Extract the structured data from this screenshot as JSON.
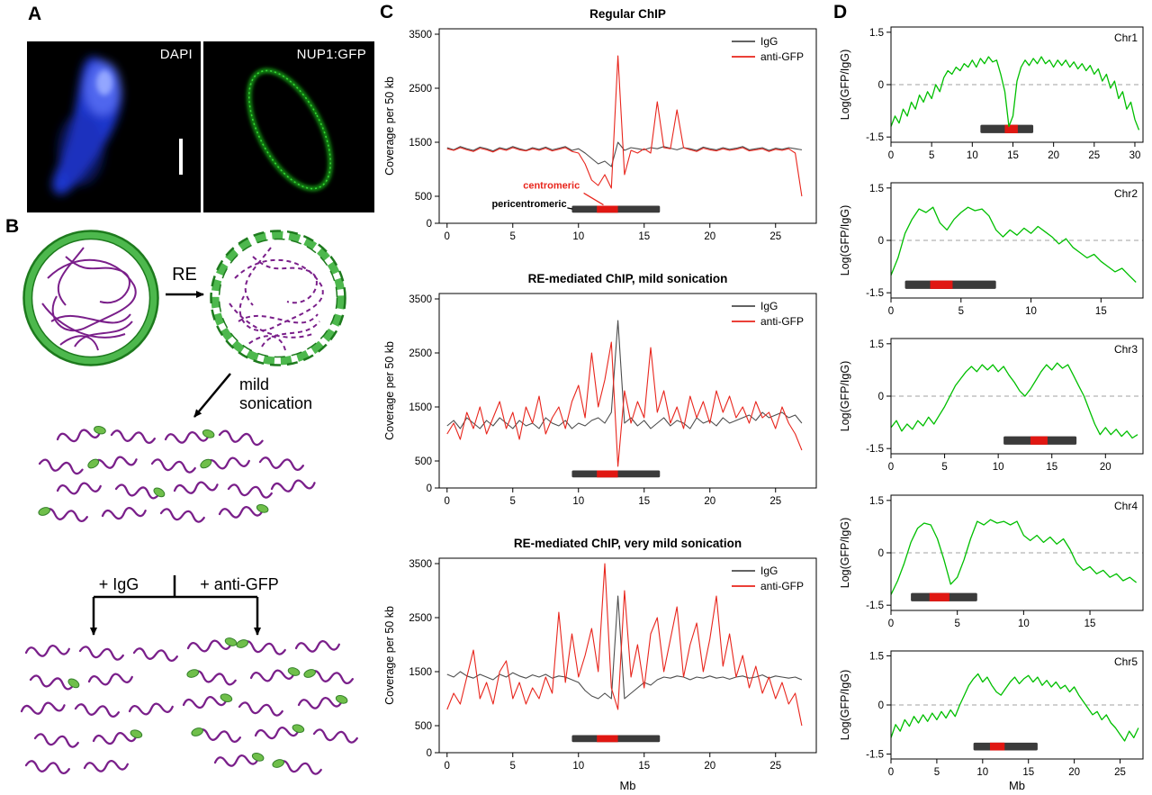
{
  "panel_labels": {
    "a": "A",
    "b": "B",
    "c": "C",
    "d": "D"
  },
  "panel_a": {
    "left_label": "DAPI",
    "right_label": "NUP1:GFP"
  },
  "panel_b": {
    "re": "RE",
    "mild_line1": "mild",
    "mild_line2": "sonication",
    "igg": "+ IgG",
    "anti_gfp": "+ anti-GFP"
  },
  "colors": {
    "igg": "#4d4d4d",
    "gfp": "#e8251c",
    "green": "#00bf00",
    "bar_dark": "#3b3b3b",
    "bar_red": "#e01712",
    "dash": "#b5b5b5",
    "purple": "#7a1f8a",
    "blob_green": "#6fbf4a",
    "blob_edge": "#35802b",
    "ring_green": "#4db84d",
    "ring_edge": "#1d7a1d",
    "dapi_blue": "#2038d8",
    "nup_green": "#16a016"
  },
  "chart_data": [
    {
      "id": "c1",
      "type": "line",
      "title": "Regular ChIP",
      "ylabel": "Coverage per 50 kb",
      "xlabel": "",
      "xlim": [
        -0.6,
        28.1
      ],
      "ylim": [
        0,
        3600
      ],
      "xticks": [
        0,
        5,
        10,
        15,
        20,
        25
      ],
      "yticks": [
        0,
        500,
        1500,
        2500,
        3500
      ],
      "x_start": 0,
      "x_step": 0.5,
      "legend": true,
      "zero_line": false,
      "series": [
        {
          "name": "IgG",
          "color": "igg",
          "values": [
            1400,
            1360,
            1420,
            1380,
            1350,
            1410,
            1380,
            1340,
            1400,
            1370,
            1420,
            1380,
            1350,
            1400,
            1370,
            1410,
            1360,
            1390,
            1420,
            1350,
            1380,
            1300,
            1200,
            1100,
            1150,
            1050,
            1500,
            1350,
            1400,
            1380,
            1360,
            1400,
            1380,
            1420,
            1390,
            1360,
            1400,
            1380,
            1350,
            1410,
            1380,
            1360,
            1400,
            1370,
            1390,
            1420,
            1360,
            1380,
            1400,
            1350,
            1390,
            1370,
            1400,
            1380,
            1360
          ]
        },
        {
          "name": "anti-GFP",
          "color": "gfp",
          "values": [
            1380,
            1350,
            1400,
            1360,
            1330,
            1390,
            1360,
            1320,
            1380,
            1350,
            1400,
            1360,
            1340,
            1380,
            1350,
            1390,
            1340,
            1370,
            1400,
            1330,
            1300,
            1100,
            800,
            700,
            900,
            650,
            3100,
            900,
            1350,
            1300,
            1380,
            1300,
            2250,
            1400,
            1380,
            2100,
            1400,
            1360,
            1330,
            1390,
            1360,
            1340,
            1380,
            1350,
            1370,
            1400,
            1340,
            1360,
            1380,
            1330,
            1370,
            1350,
            1380,
            1300,
            500
          ]
        }
      ],
      "centromere_bar": {
        "start": 9.5,
        "end": 16.2,
        "red_start": 11.4,
        "red_end": 13.0,
        "y": 260,
        "h": 130
      },
      "annotations": [
        {
          "text": "centromeric",
          "color": "gfp",
          "x": 10.1,
          "y": 640,
          "anchor": "end",
          "line": [
            [
              10.4,
              560
            ],
            [
              11.9,
              340
            ]
          ]
        },
        {
          "text": "pericentromeric",
          "color": "#000000",
          "x": 9.1,
          "y": 300,
          "anchor": "end",
          "line": [
            [
              9.15,
              285
            ],
            [
              9.55,
              265
            ]
          ]
        }
      ]
    },
    {
      "id": "c2",
      "type": "line",
      "title": "RE-mediated ChIP, mild sonication",
      "ylabel": "Coverage per 50 kb",
      "xlabel": "",
      "xlim": [
        -0.6,
        28.1
      ],
      "ylim": [
        0,
        3600
      ],
      "xticks": [
        0,
        5,
        10,
        15,
        20,
        25
      ],
      "yticks": [
        0,
        500,
        1500,
        2500,
        3500
      ],
      "x_start": 0,
      "x_step": 0.5,
      "legend": true,
      "zero_line": false,
      "series": [
        {
          "name": "IgG",
          "color": "igg",
          "values": [
            1150,
            1250,
            1100,
            1300,
            1200,
            1100,
            1250,
            1150,
            1300,
            1200,
            1100,
            1250,
            1150,
            1200,
            1100,
            1300,
            1200,
            1150,
            1250,
            1100,
            1200,
            1150,
            1250,
            1300,
            1200,
            1400,
            3100,
            1200,
            1300,
            1150,
            1250,
            1100,
            1200,
            1300,
            1150,
            1250,
            1200,
            1100,
            1300,
            1200,
            1250,
            1150,
            1300,
            1200,
            1250,
            1300,
            1350,
            1250,
            1400,
            1300,
            1350,
            1400,
            1300,
            1350,
            1200
          ]
        },
        {
          "name": "anti-GFP",
          "color": "gfp",
          "values": [
            1000,
            1200,
            900,
            1400,
            1100,
            1500,
            1000,
            1300,
            1600,
            1100,
            1400,
            900,
            1500,
            1200,
            1700,
            1000,
            1300,
            1500,
            1100,
            1600,
            1900,
            1300,
            2500,
            1500,
            2000,
            2700,
            400,
            1800,
            1200,
            1600,
            1300,
            2600,
            1400,
            1800,
            1200,
            1500,
            1100,
            1700,
            1300,
            1600,
            1200,
            1800,
            1400,
            1700,
            1300,
            1500,
            1200,
            1600,
            1300,
            1400,
            1100,
            1500,
            1200,
            1000,
            700
          ]
        }
      ],
      "centromere_bar": {
        "start": 9.5,
        "end": 16.2,
        "red_start": 11.4,
        "red_end": 13.0,
        "y": 260,
        "h": 130
      },
      "annotations": []
    },
    {
      "id": "c3",
      "type": "line",
      "title": "RE-mediated ChIP, very mild sonication",
      "ylabel": "Coverage per 50 kb",
      "xlabel": "Mb",
      "xlim": [
        -0.6,
        28.1
      ],
      "ylim": [
        0,
        3600
      ],
      "xticks": [
        0,
        5,
        10,
        15,
        20,
        25
      ],
      "yticks": [
        0,
        500,
        1500,
        2500,
        3500
      ],
      "x_start": 0,
      "x_step": 0.5,
      "legend": true,
      "zero_line": false,
      "series": [
        {
          "name": "IgG",
          "color": "igg",
          "values": [
            1450,
            1400,
            1500,
            1420,
            1380,
            1450,
            1400,
            1350,
            1450,
            1400,
            1480,
            1420,
            1380,
            1440,
            1400,
            1450,
            1380,
            1420,
            1400,
            1350,
            1300,
            1150,
            1050,
            1000,
            1100,
            1000,
            2900,
            1000,
            1100,
            1200,
            1300,
            1250,
            1350,
            1400,
            1380,
            1420,
            1400,
            1350,
            1400,
            1380,
            1420,
            1380,
            1400,
            1360,
            1400,
            1420,
            1380,
            1400,
            1440,
            1380,
            1420,
            1400,
            1380,
            1400,
            1350
          ]
        },
        {
          "name": "anti-GFP",
          "color": "gfp",
          "values": [
            800,
            1100,
            900,
            1400,
            1900,
            1000,
            1300,
            900,
            1500,
            1700,
            1000,
            1300,
            900,
            1200,
            1000,
            1400,
            1100,
            2600,
            1300,
            2200,
            1400,
            1800,
            2300,
            1500,
            3500,
            1200,
            800,
            3000,
            1400,
            2000,
            1200,
            2200,
            2500,
            1500,
            2100,
            2700,
            1400,
            2000,
            2400,
            1500,
            2100,
            2900,
            1600,
            2200,
            1400,
            1800,
            1200,
            1600,
            1100,
            1400,
            1000,
            1300,
            900,
            1100,
            500
          ]
        }
      ],
      "centromere_bar": {
        "start": 9.5,
        "end": 16.2,
        "red_start": 11.4,
        "red_end": 13.0,
        "y": 260,
        "h": 130
      },
      "annotations": []
    },
    {
      "id": "d1",
      "type": "line",
      "chr": "Chr1",
      "ylabel": "Log(GFP/IgG)",
      "xlabel": "",
      "xlim": [
        0,
        31
      ],
      "ylim": [
        -1.65,
        1.65
      ],
      "xticks": [
        0,
        5,
        10,
        15,
        20,
        25,
        30
      ],
      "yticks": [
        -1.5,
        0,
        1.5
      ],
      "x_start": 0,
      "x_step": 0.5,
      "legend": false,
      "zero_line": true,
      "series": [
        {
          "name": "Log(GFP/IgG)",
          "color": "green",
          "values": [
            -1.2,
            -0.9,
            -1.1,
            -0.7,
            -0.9,
            -0.5,
            -0.7,
            -0.3,
            -0.5,
            -0.2,
            -0.4,
            0.0,
            -0.2,
            0.2,
            0.4,
            0.3,
            0.5,
            0.4,
            0.6,
            0.5,
            0.7,
            0.5,
            0.75,
            0.6,
            0.8,
            0.65,
            0.7,
            0.3,
            -0.2,
            -1.2,
            -0.9,
            0.1,
            0.5,
            0.7,
            0.55,
            0.75,
            0.6,
            0.8,
            0.6,
            0.7,
            0.5,
            0.7,
            0.55,
            0.7,
            0.5,
            0.65,
            0.45,
            0.6,
            0.4,
            0.55,
            0.3,
            0.45,
            0.1,
            0.3,
            -0.1,
            0.1,
            -0.4,
            -0.2,
            -0.7,
            -0.5,
            -1.0,
            -1.3
          ]
        }
      ],
      "centromere_bar": {
        "start": 11.0,
        "end": 17.5,
        "red_start": 14.0,
        "red_end": 15.6,
        "y": -1.27,
        "h": 0.24
      },
      "annotations": []
    },
    {
      "id": "d2",
      "type": "line",
      "chr": "Chr2",
      "ylabel": "Log(GFP/IgG)",
      "xlabel": "",
      "xlim": [
        0,
        18
      ],
      "ylim": [
        -1.65,
        1.65
      ],
      "xticks": [
        0,
        5,
        10,
        15
      ],
      "yticks": [
        -1.5,
        0,
        1.5
      ],
      "x_start": 0,
      "x_step": 0.5,
      "legend": false,
      "zero_line": true,
      "series": [
        {
          "name": "Log(GFP/IgG)",
          "color": "green",
          "values": [
            -1.0,
            -0.5,
            0.2,
            0.6,
            0.9,
            0.8,
            0.95,
            0.5,
            0.3,
            0.6,
            0.8,
            0.95,
            0.85,
            0.9,
            0.7,
            0.3,
            0.1,
            0.3,
            0.15,
            0.35,
            0.2,
            0.4,
            0.25,
            0.1,
            -0.1,
            0.05,
            -0.2,
            -0.35,
            -0.5,
            -0.4,
            -0.6,
            -0.75,
            -0.9,
            -0.8,
            -1.0,
            -1.2
          ]
        }
      ],
      "centromere_bar": {
        "start": 1.0,
        "end": 7.5,
        "red_start": 2.8,
        "red_end": 4.4,
        "y": -1.27,
        "h": 0.24
      },
      "annotations": []
    },
    {
      "id": "d3",
      "type": "line",
      "chr": "Chr3",
      "ylabel": "Log(GFP/IgG)",
      "xlabel": "",
      "xlim": [
        0,
        23.5
      ],
      "ylim": [
        -1.65,
        1.65
      ],
      "xticks": [
        0,
        5,
        10,
        15,
        20
      ],
      "yticks": [
        -1.5,
        0,
        1.5
      ],
      "x_start": 0,
      "x_step": 0.5,
      "legend": false,
      "zero_line": true,
      "series": [
        {
          "name": "Log(GFP/IgG)",
          "color": "green",
          "values": [
            -0.9,
            -0.7,
            -1.0,
            -0.8,
            -0.95,
            -0.7,
            -0.85,
            -0.6,
            -0.8,
            -0.55,
            -0.3,
            0.0,
            0.3,
            0.5,
            0.7,
            0.85,
            0.7,
            0.9,
            0.75,
            0.9,
            0.7,
            0.85,
            0.6,
            0.4,
            0.15,
            0.0,
            0.2,
            0.45,
            0.7,
            0.9,
            0.75,
            0.95,
            0.8,
            0.9,
            0.6,
            0.3,
            0.0,
            -0.4,
            -0.8,
            -1.1,
            -0.9,
            -1.1,
            -0.95,
            -1.15,
            -1.0,
            -1.2,
            -1.1
          ]
        }
      ],
      "centromere_bar": {
        "start": 10.5,
        "end": 17.3,
        "red_start": 13.0,
        "red_end": 14.6,
        "y": -1.27,
        "h": 0.24
      },
      "annotations": []
    },
    {
      "id": "d4",
      "type": "line",
      "chr": "Chr4",
      "ylabel": "Log(GFP/IgG)",
      "xlabel": "",
      "xlim": [
        0,
        19
      ],
      "ylim": [
        -1.65,
        1.65
      ],
      "xticks": [
        0,
        5,
        10,
        15
      ],
      "yticks": [
        -1.5,
        0,
        1.5
      ],
      "x_start": 0,
      "x_step": 0.5,
      "legend": false,
      "zero_line": true,
      "series": [
        {
          "name": "Log(GFP/IgG)",
          "color": "green",
          "values": [
            -1.2,
            -0.8,
            -0.3,
            0.3,
            0.7,
            0.85,
            0.8,
            0.4,
            -0.2,
            -0.9,
            -0.7,
            -0.2,
            0.4,
            0.9,
            0.8,
            0.95,
            0.85,
            0.9,
            0.8,
            0.9,
            0.5,
            0.35,
            0.5,
            0.3,
            0.45,
            0.25,
            0.4,
            0.1,
            -0.3,
            -0.5,
            -0.4,
            -0.6,
            -0.5,
            -0.7,
            -0.6,
            -0.8,
            -0.7,
            -0.85
          ]
        }
      ],
      "centromere_bar": {
        "start": 1.5,
        "end": 6.5,
        "red_start": 2.9,
        "red_end": 4.4,
        "y": -1.27,
        "h": 0.24
      },
      "annotations": []
    },
    {
      "id": "d5",
      "type": "line",
      "chr": "Chr5",
      "ylabel": "Log(GFP/IgG)",
      "xlabel": "Mb",
      "xlim": [
        0,
        27.5
      ],
      "ylim": [
        -1.65,
        1.65
      ],
      "xticks": [
        0,
        5,
        10,
        15,
        20,
        25
      ],
      "yticks": [
        -1.5,
        0,
        1.5
      ],
      "x_start": 0,
      "x_step": 0.5,
      "legend": false,
      "zero_line": true,
      "series": [
        {
          "name": "Log(GFP/IgG)",
          "color": "green",
          "values": [
            -1.0,
            -0.6,
            -0.8,
            -0.45,
            -0.65,
            -0.35,
            -0.55,
            -0.3,
            -0.5,
            -0.25,
            -0.45,
            -0.2,
            -0.4,
            -0.15,
            -0.35,
            0.0,
            0.3,
            0.6,
            0.8,
            0.95,
            0.7,
            0.85,
            0.6,
            0.4,
            0.3,
            0.5,
            0.7,
            0.85,
            0.65,
            0.8,
            0.9,
            0.7,
            0.85,
            0.6,
            0.75,
            0.55,
            0.7,
            0.5,
            0.6,
            0.4,
            0.55,
            0.3,
            0.1,
            -0.1,
            -0.3,
            -0.2,
            -0.45,
            -0.3,
            -0.55,
            -0.7,
            -0.9,
            -1.1,
            -0.8,
            -1.0,
            -0.7
          ]
        }
      ],
      "centromere_bar": {
        "start": 9.0,
        "end": 16.0,
        "red_start": 10.8,
        "red_end": 12.4,
        "y": -1.27,
        "h": 0.24
      },
      "annotations": []
    }
  ]
}
